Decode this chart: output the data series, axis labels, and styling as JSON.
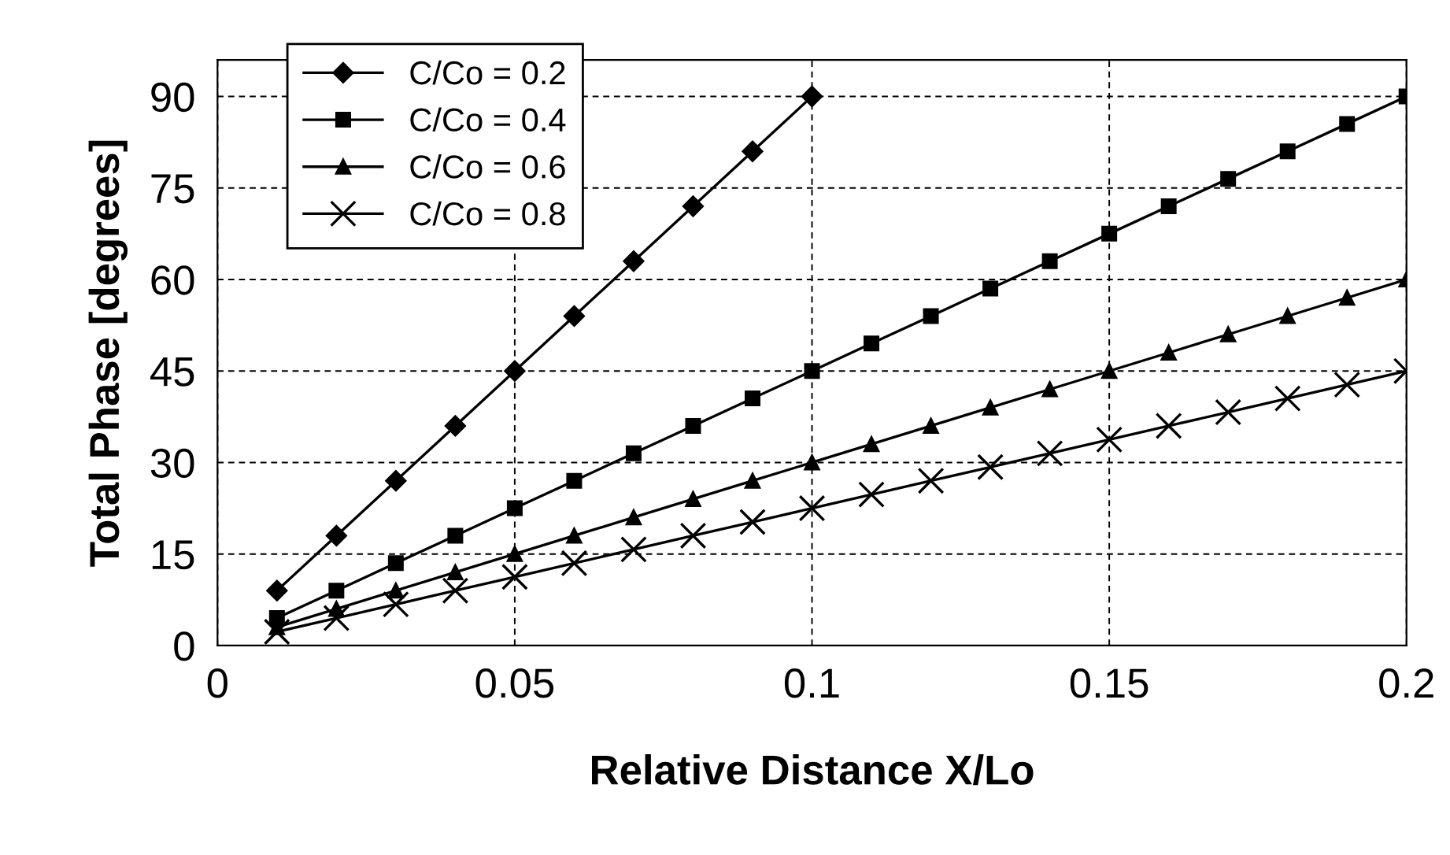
{
  "chart_data": {
    "type": "line",
    "xlabel": "Relative Distance X/Lo",
    "ylabel": "Total Phase [degrees]",
    "x": [
      0.01,
      0.02,
      0.03,
      0.04,
      0.05,
      0.06,
      0.07,
      0.08,
      0.09,
      0.1,
      0.11,
      0.12,
      0.13,
      0.14,
      0.15,
      0.16,
      0.17,
      0.18,
      0.19,
      0.2
    ],
    "series": [
      {
        "name": "C/Co = 0.2",
        "color": "#000000",
        "marker": "diamond",
        "values": [
          9,
          18,
          27,
          36,
          45,
          54,
          63,
          72,
          81,
          90,
          null,
          null,
          null,
          null,
          null,
          null,
          null,
          null,
          null,
          null
        ]
      },
      {
        "name": "C/Co = 0.4",
        "color": "#000000",
        "marker": "square",
        "values": [
          4.5,
          9,
          13.5,
          18,
          22.5,
          27,
          31.5,
          36,
          40.5,
          45,
          49.5,
          54,
          58.5,
          63,
          67.5,
          72,
          76.5,
          81,
          85.5,
          90
        ]
      },
      {
        "name": "C/Co = 0.6",
        "color": "#000000",
        "marker": "triangle",
        "values": [
          3,
          6,
          9,
          12,
          15,
          18,
          21,
          24,
          27,
          30,
          33,
          36,
          39,
          42,
          45,
          48,
          51,
          54,
          57,
          60
        ]
      },
      {
        "name": "C/Co = 0.8",
        "color": "#000000",
        "marker": "cross",
        "values": [
          2.25,
          4.5,
          6.75,
          9,
          11.25,
          13.5,
          15.75,
          18,
          20.25,
          22.5,
          24.75,
          27,
          29.25,
          31.5,
          33.75,
          36,
          38.25,
          40.5,
          42.75,
          45
        ]
      }
    ],
    "xlim": [
      0,
      0.2
    ],
    "xticks": [
      0,
      0.05,
      0.1,
      0.15,
      0.2
    ],
    "ylim": [
      0,
      96
    ],
    "yticks": [
      0,
      15,
      30,
      45,
      60,
      75,
      90
    ],
    "grid": true,
    "legend": "top left",
    "line_style": "solid"
  }
}
